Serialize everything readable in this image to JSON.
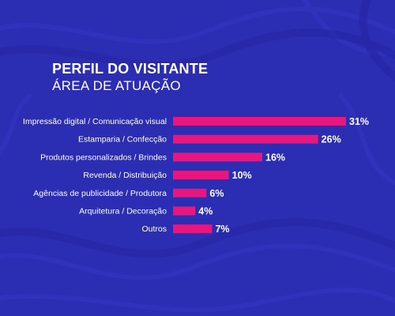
{
  "chart_data": {
    "type": "bar",
    "orientation": "horizontal",
    "title": "PERFIL DO VISITANTE",
    "subtitle": "ÁREA DE ATUAÇÃO",
    "categories": [
      "Impressão digital / Comunicação visual",
      "Estamparia / Confecção",
      "Produtos personalizados / Brindes",
      "Revenda / Distribuição",
      "Agências de publicidade / Produtora",
      "Arquitetura / Decoração",
      "Outros"
    ],
    "values": [
      31,
      26,
      16,
      10,
      6,
      4,
      7
    ],
    "value_labels": [
      "31%",
      "26%",
      "16%",
      "10%",
      "6%",
      "4%",
      "7%"
    ],
    "unit": "%",
    "xlim": [
      0,
      31
    ],
    "grid": false,
    "legend": "none",
    "colors": {
      "background": "#2b2db3",
      "bar": "#e8177f",
      "text": "#ffffff"
    }
  }
}
